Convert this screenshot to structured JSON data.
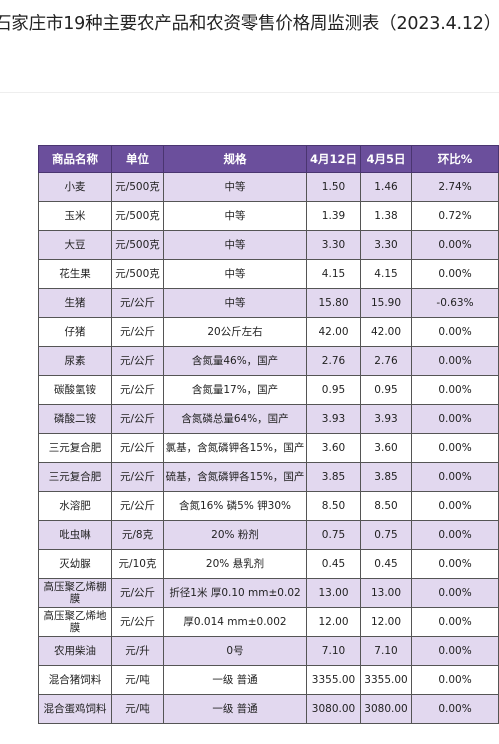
{
  "title": "石家庄市19种主要农产品和农资零售价格周监测表（2023.4.12）",
  "header": {
    "name": "商品名称",
    "unit": "单位",
    "spec": "规格",
    "apr12": "4月12日",
    "apr5": "4月5日",
    "change": "环比%"
  },
  "rows": [
    {
      "name": "小麦",
      "unit": "元/500克",
      "spec": "中等",
      "apr12": "1.50",
      "apr5": "1.46",
      "change": "2.74%"
    },
    {
      "name": "玉米",
      "unit": "元/500克",
      "spec": "中等",
      "apr12": "1.39",
      "apr5": "1.38",
      "change": "0.72%"
    },
    {
      "name": "大豆",
      "unit": "元/500克",
      "spec": "中等",
      "apr12": "3.30",
      "apr5": "3.30",
      "change": "0.00%"
    },
    {
      "name": "花生果",
      "unit": "元/500克",
      "spec": "中等",
      "apr12": "4.15",
      "apr5": "4.15",
      "change": "0.00%"
    },
    {
      "name": "生猪",
      "unit": "元/公斤",
      "spec": "中等",
      "apr12": "15.80",
      "apr5": "15.90",
      "change": "-0.63%"
    },
    {
      "name": "仔猪",
      "unit": "元/公斤",
      "spec": "20公斤左右",
      "apr12": "42.00",
      "apr5": "42.00",
      "change": "0.00%"
    },
    {
      "name": "尿素",
      "unit": "元/公斤",
      "spec": "含氮量46%，国产",
      "apr12": "2.76",
      "apr5": "2.76",
      "change": "0.00%"
    },
    {
      "name": "碳酸氢铵",
      "unit": "元/公斤",
      "spec": "含氮量17%，国产",
      "apr12": "0.95",
      "apr5": "0.95",
      "change": "0.00%"
    },
    {
      "name": "磷酸二铵",
      "unit": "元/公斤",
      "spec": "含氮磷总量64%，国产",
      "apr12": "3.93",
      "apr5": "3.93",
      "change": "0.00%"
    },
    {
      "name": "三元复合肥",
      "unit": "元/公斤",
      "spec": "氯基，含氮磷钾各15%，国产",
      "apr12": "3.60",
      "apr5": "3.60",
      "change": "0.00%"
    },
    {
      "name": "三元复合肥",
      "unit": "元/公斤",
      "spec": "硫基，含氮磷钾各15%，国产",
      "apr12": "3.85",
      "apr5": "3.85",
      "change": "0.00%"
    },
    {
      "name": "水溶肥",
      "unit": "元/公斤",
      "spec": "含氮16% 磷5% 钾30%",
      "apr12": "8.50",
      "apr5": "8.50",
      "change": "0.00%"
    },
    {
      "name": "吡虫啉",
      "unit": "元/8克",
      "spec": "20% 粉剂",
      "apr12": "0.75",
      "apr5": "0.75",
      "change": "0.00%"
    },
    {
      "name": "灭幼脲",
      "unit": "元/10克",
      "spec": "20% 悬乳剂",
      "apr12": "0.45",
      "apr5": "0.45",
      "change": "0.00%"
    },
    {
      "name": "高压聚乙烯棚膜",
      "unit": "元/公斤",
      "spec": "折径1米 厚0.10 mm±0.02",
      "apr12": "13.00",
      "apr5": "13.00",
      "change": "0.00%"
    },
    {
      "name": "高压聚乙烯地膜",
      "unit": "元/公斤",
      "spec": "厚0.014 mm±0.002",
      "apr12": "12.00",
      "apr5": "12.00",
      "change": "0.00%"
    },
    {
      "name": "农用柴油",
      "unit": "元/升",
      "spec": "0号",
      "apr12": "7.10",
      "apr5": "7.10",
      "change": "0.00%"
    },
    {
      "name": "混合猪饲料",
      "unit": "元/吨",
      "spec": "一级 普通",
      "apr12": "3355.00",
      "apr5": "3355.00",
      "change": "0.00%"
    },
    {
      "name": "混合蛋鸡饲料",
      "unit": "元/吨",
      "spec": "一级 普通",
      "apr12": "3080.00",
      "apr5": "3080.00",
      "change": "0.00%"
    }
  ]
}
